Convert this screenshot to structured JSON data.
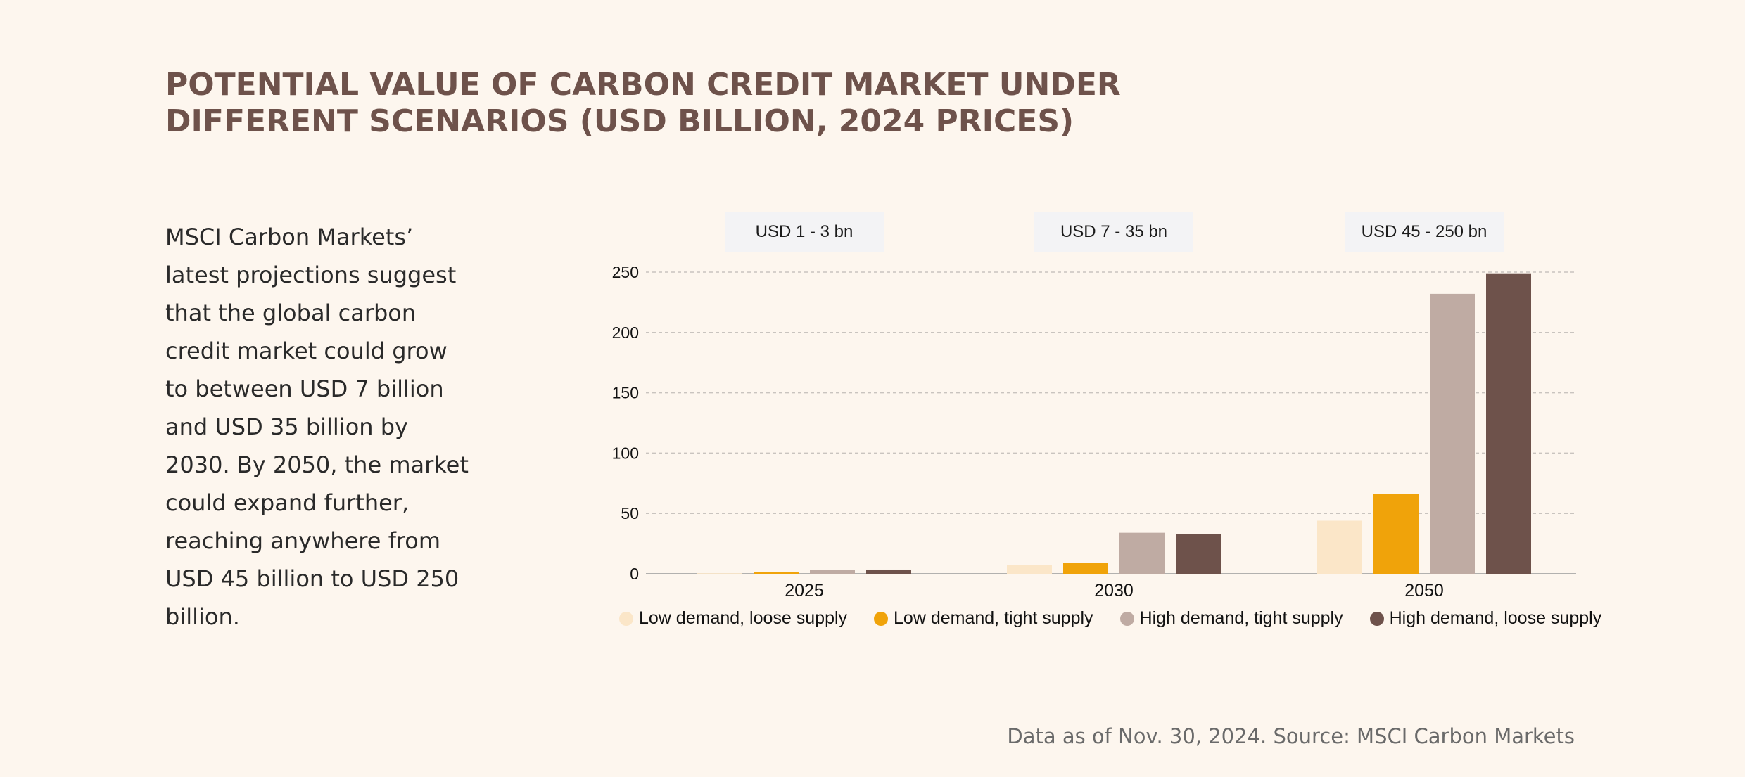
{
  "title_lines": [
    "POTENTIAL VALUE OF CARBON CREDIT MARKET UNDER",
    "DIFFERENT SCENARIOS (USD BILLION, 2024 PRICES)"
  ],
  "description": "MSCI Carbon Markets’ latest projections suggest that the global carbon credit market could grow to between USD 7 billion and USD 35 billion by 2030. By 2050, the market could expand further, reaching anywhere from USD 45 billion to USD 250 billion.",
  "source": "Data as of Nov. 30, 2024. Source: MSCI Carbon Markets",
  "range_badges": [
    "USD 1 - 3 bn",
    "USD 7 - 35 bn",
    "USD 45 - 250 bn"
  ],
  "chart_data": {
    "type": "bar",
    "title": "Potential value of carbon credit market under different scenarios (USD billion, 2024 prices)",
    "categories": [
      "2025",
      "2030",
      "2050"
    ],
    "ylim": [
      0,
      250
    ],
    "yticks": [
      0,
      50,
      100,
      150,
      200,
      250
    ],
    "grid": true,
    "legend_position": "bottom",
    "series": [
      {
        "name": "Low demand, loose supply",
        "color": "#fbe6c8",
        "values": [
          0.5,
          7,
          44
        ]
      },
      {
        "name": "Low demand, tight supply",
        "color": "#f0a30a",
        "values": [
          1.5,
          9,
          66
        ]
      },
      {
        "name": "High demand, tight supply",
        "color": "#bfaba3",
        "values": [
          3,
          34,
          232
        ]
      },
      {
        "name": "High demand, loose supply",
        "color": "#6e524b",
        "values": [
          3.5,
          33,
          249
        ]
      }
    ]
  }
}
